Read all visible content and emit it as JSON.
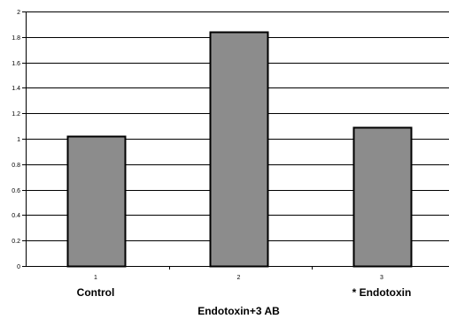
{
  "chart_data": {
    "type": "bar",
    "x": [
      "1",
      "2",
      "3"
    ],
    "values": [
      1.02,
      1.84,
      1.09
    ],
    "ylim": [
      0,
      2
    ],
    "yticks": [
      "0",
      "0.2",
      "0.4",
      "0.6",
      "0.8",
      "1",
      "1.2",
      "1.4",
      "1.6",
      "1.8",
      "2"
    ],
    "category_labels": [
      "Control",
      "Endotoxin+3 AB",
      "* Endotoxin"
    ],
    "grid": true,
    "colors": {
      "bar": "#8c8c8c",
      "bar_edge": "#000000",
      "grid": "#000000",
      "axis": "#000000"
    }
  }
}
